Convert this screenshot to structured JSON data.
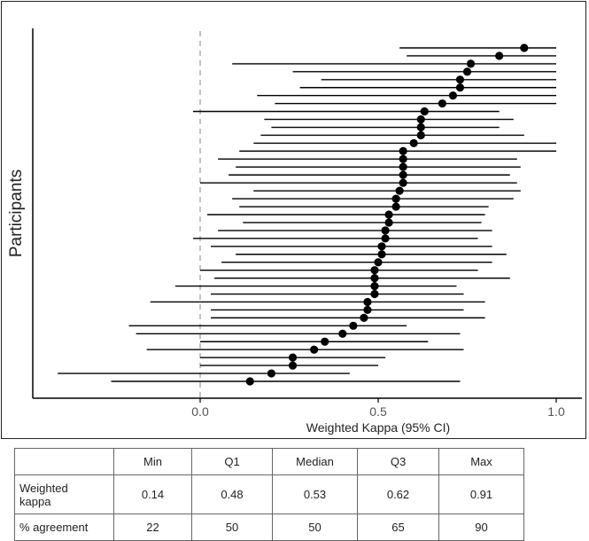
{
  "chart_data": {
    "type": "forest",
    "xlabel": "Weighted Kappa (95% CI)",
    "ylabel": "Participants",
    "xlim": [
      -0.47,
      1.07
    ],
    "xticks": [
      "0.0",
      "0.5",
      "1.0"
    ],
    "xtick_values": [
      0.0,
      0.5,
      1.0
    ],
    "reference_line": 0.0,
    "grid": false,
    "marker_color": "#000000",
    "points": [
      {
        "estimate": 0.91,
        "lower": 0.56,
        "upper": 1.0
      },
      {
        "estimate": 0.84,
        "lower": 0.58,
        "upper": 1.0
      },
      {
        "estimate": 0.76,
        "lower": 0.09,
        "upper": 1.0
      },
      {
        "estimate": 0.75,
        "lower": 0.26,
        "upper": 1.0
      },
      {
        "estimate": 0.73,
        "lower": 0.34,
        "upper": 1.0
      },
      {
        "estimate": 0.73,
        "lower": 0.28,
        "upper": 1.0
      },
      {
        "estimate": 0.71,
        "lower": 0.16,
        "upper": 1.0
      },
      {
        "estimate": 0.68,
        "lower": 0.21,
        "upper": 1.0
      },
      {
        "estimate": 0.63,
        "lower": -0.02,
        "upper": 0.84
      },
      {
        "estimate": 0.62,
        "lower": 0.18,
        "upper": 0.88
      },
      {
        "estimate": 0.62,
        "lower": 0.2,
        "upper": 0.84
      },
      {
        "estimate": 0.62,
        "lower": 0.17,
        "upper": 0.91
      },
      {
        "estimate": 0.6,
        "lower": 0.15,
        "upper": 1.0
      },
      {
        "estimate": 0.57,
        "lower": 0.11,
        "upper": 1.0
      },
      {
        "estimate": 0.57,
        "lower": 0.05,
        "upper": 0.89
      },
      {
        "estimate": 0.57,
        "lower": 0.1,
        "upper": 0.9
      },
      {
        "estimate": 0.57,
        "lower": 0.08,
        "upper": 0.87
      },
      {
        "estimate": 0.57,
        "lower": 0.0,
        "upper": 0.89
      },
      {
        "estimate": 0.56,
        "lower": 0.15,
        "upper": 0.9
      },
      {
        "estimate": 0.55,
        "lower": 0.09,
        "upper": 0.88
      },
      {
        "estimate": 0.55,
        "lower": 0.11,
        "upper": 0.81
      },
      {
        "estimate": 0.53,
        "lower": 0.02,
        "upper": 0.8
      },
      {
        "estimate": 0.53,
        "lower": 0.12,
        "upper": 0.79
      },
      {
        "estimate": 0.52,
        "lower": 0.05,
        "upper": 0.82
      },
      {
        "estimate": 0.52,
        "lower": -0.02,
        "upper": 0.78
      },
      {
        "estimate": 0.51,
        "lower": 0.03,
        "upper": 0.82
      },
      {
        "estimate": 0.51,
        "lower": 0.1,
        "upper": 0.86
      },
      {
        "estimate": 0.5,
        "lower": 0.06,
        "upper": 0.82
      },
      {
        "estimate": 0.49,
        "lower": 0.0,
        "upper": 0.78
      },
      {
        "estimate": 0.49,
        "lower": 0.04,
        "upper": 0.87
      },
      {
        "estimate": 0.49,
        "lower": -0.07,
        "upper": 0.72
      },
      {
        "estimate": 0.49,
        "lower": 0.03,
        "upper": 0.74
      },
      {
        "estimate": 0.47,
        "lower": -0.14,
        "upper": 0.8
      },
      {
        "estimate": 0.47,
        "lower": 0.03,
        "upper": 0.74
      },
      {
        "estimate": 0.46,
        "lower": 0.03,
        "upper": 0.8
      },
      {
        "estimate": 0.43,
        "lower": -0.2,
        "upper": 0.58
      },
      {
        "estimate": 0.4,
        "lower": -0.18,
        "upper": 0.73
      },
      {
        "estimate": 0.35,
        "lower": 0.0,
        "upper": 0.64
      },
      {
        "estimate": 0.32,
        "lower": -0.15,
        "upper": 0.74
      },
      {
        "estimate": 0.26,
        "lower": 0.0,
        "upper": 0.52
      },
      {
        "estimate": 0.26,
        "lower": 0.0,
        "upper": 0.5
      },
      {
        "estimate": 0.2,
        "lower": -0.4,
        "upper": 0.42
      },
      {
        "estimate": 0.14,
        "lower": -0.25,
        "upper": 0.73
      }
    ]
  },
  "table": {
    "headers": [
      "",
      "Min",
      "Q1",
      "Median",
      "Q3",
      "Max"
    ],
    "rows": [
      {
        "label_line1": "Weighted",
        "label_line2": "kappa",
        "values": [
          "0.14",
          "0.48",
          "0.53",
          "0.62",
          "0.91"
        ]
      },
      {
        "label": "% agreement",
        "values": [
          "22",
          "50",
          "50",
          "65",
          "90"
        ]
      }
    ]
  }
}
